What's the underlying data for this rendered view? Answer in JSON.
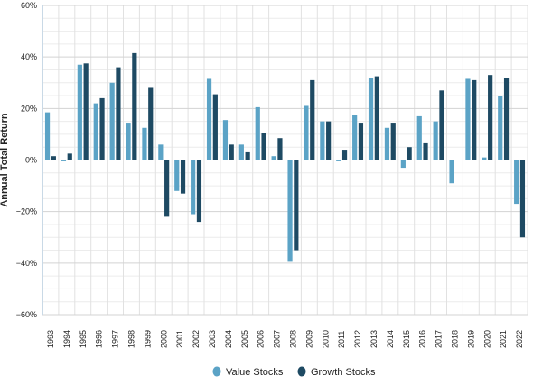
{
  "chart_data": {
    "type": "bar",
    "title": "",
    "xlabel": "",
    "ylabel": "Annual Total Return",
    "ylim": [
      -60,
      60
    ],
    "yticks": [
      -60,
      -40,
      -20,
      0,
      20,
      40,
      60
    ],
    "ytick_labels": [
      "−60%",
      "−40%",
      "−20%",
      "0%",
      "20%",
      "40%",
      "60%"
    ],
    "grid": true,
    "legend_position": "bottom-center",
    "categories": [
      "1993",
      "1994",
      "1995",
      "1996",
      "1997",
      "1998",
      "1999",
      "2000",
      "2001",
      "2002",
      "2003",
      "2004",
      "2005",
      "2006",
      "2007",
      "2008",
      "2009",
      "2010",
      "2011",
      "2012",
      "2013",
      "2014",
      "2015",
      "2016",
      "2017",
      "2018",
      "2019",
      "2020",
      "2021",
      "2022"
    ],
    "series": [
      {
        "name": "Value Stocks",
        "color": "#5ba3c6",
        "values": [
          18.5,
          -0.5,
          37,
          22,
          30,
          14.5,
          12.5,
          6,
          -12,
          -21,
          31.5,
          15.5,
          6,
          20.5,
          1.5,
          -39.5,
          21,
          15,
          -0.5,
          17.5,
          32,
          12.5,
          -3,
          17,
          15,
          -9,
          31.5,
          1,
          25,
          -17
        ]
      },
      {
        "name": "Growth Stocks",
        "color": "#1e4a63",
        "values": [
          1.5,
          2.5,
          37.5,
          24,
          36,
          41.5,
          28,
          -22,
          -13,
          -24,
          25.5,
          6,
          3,
          10.5,
          8.5,
          -35,
          31,
          15,
          4,
          14.5,
          32.5,
          14.5,
          5,
          6.5,
          27,
          0,
          31,
          33,
          32,
          -30
        ]
      }
    ]
  }
}
